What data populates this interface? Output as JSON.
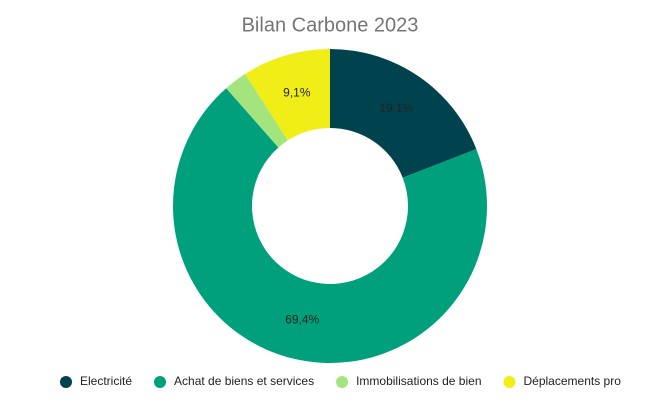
{
  "chart_data": {
    "type": "donut",
    "title": "Bilan Carbone 2023",
    "categories": [
      "Electricité",
      "Achat de biens et services",
      "Immobilisations de bien",
      "Déplacements pro"
    ],
    "values": [
      19.1,
      69.4,
      2.4,
      9.1
    ],
    "value_labels": [
      "19,1%",
      "69,4%",
      null,
      "9,1%"
    ],
    "colors": [
      "#00434f",
      "#00a07c",
      "#a3e47d",
      "#f0ee16"
    ],
    "legend": "bottom"
  }
}
